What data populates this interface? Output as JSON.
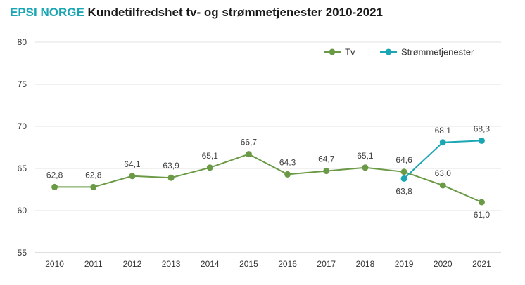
{
  "header": {
    "brand": "EPSI NORGE",
    "title": "Kundetilfredshet tv- og strømmetjenester 2010-2021"
  },
  "chart_data": {
    "type": "line",
    "title": "Kundetilfredshet tv- og strømmetjenester 2010-2021",
    "xlabel": "",
    "ylabel": "",
    "categories": [
      "2010",
      "2011",
      "2012",
      "2013",
      "2014",
      "2015",
      "2016",
      "2017",
      "2018",
      "2019",
      "2020",
      "2021"
    ],
    "ylim": [
      55,
      80
    ],
    "yticks": [
      55,
      60,
      65,
      70,
      75,
      80
    ],
    "grid": true,
    "legend": "top-right",
    "series": [
      {
        "name": "Tv",
        "color": "#6a9a45",
        "values": [
          62.8,
          62.8,
          64.1,
          63.9,
          65.1,
          66.7,
          64.3,
          64.7,
          65.1,
          64.6,
          63.0,
          61.0
        ],
        "labels": [
          "62,8",
          "62,8",
          "64,1",
          "63,9",
          "65,1",
          "66,7",
          "64,3",
          "64,7",
          "65,1",
          "64,6",
          "63,0",
          "61,0"
        ]
      },
      {
        "name": "Strømmetjenester",
        "color": "#1aa6b3",
        "values": [
          null,
          null,
          null,
          null,
          null,
          null,
          null,
          null,
          null,
          63.8,
          68.1,
          68.3
        ],
        "labels": [
          "",
          "",
          "",
          "",
          "",
          "",
          "",
          "",
          "",
          "63,8",
          "68,1",
          "68,3"
        ]
      }
    ]
  }
}
